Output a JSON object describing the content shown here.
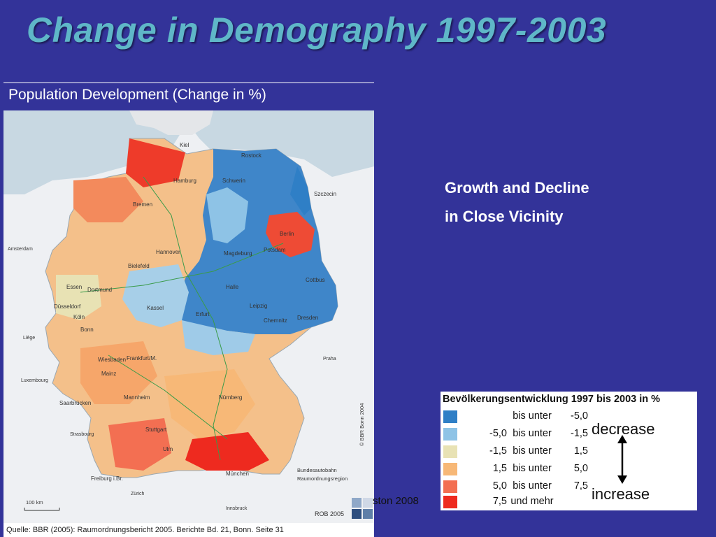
{
  "slide": {
    "title": "Change in Demography 1997-2003",
    "subtitle": "Population Development (Change in %)",
    "right_text": [
      "Growth and Decline",
      "in Close Vicinity"
    ],
    "footer": "ston 2008"
  },
  "map": {
    "source": "Quelle: BBR (2005): Raumordnungsbericht 2005. Berichte Bd. 21, Bonn. Seite 31",
    "copyright": "© BBR Bonn 2004",
    "rob": "ROB 2005",
    "scale": "100 km",
    "key": [
      "Bundesautobahn",
      "Raumordnungsregion"
    ],
    "cities": {
      "kiel": "Kiel",
      "rostock": "Rostock",
      "hamburg": "Hamburg",
      "schwerin": "Schwerin",
      "szczecin": "Szczecin",
      "bremen": "Bremen",
      "amsterdam": "Amsterdam",
      "berlin": "Berlin",
      "potsdam": "Potsdam",
      "hannover": "Hannover",
      "magdeburg": "Magdeburg",
      "bielefeld": "Bielefeld",
      "essen": "Essen",
      "dortmund": "Dortmund",
      "cottbus": "Cottbus",
      "halle": "Halle",
      "duesseldorf": "Düsseldorf",
      "kassel": "Kassel",
      "leipzig": "Leipzig",
      "koeln": "Köln",
      "bonn": "Bonn",
      "erfurt": "Erfurt",
      "chemnitz": "Chemnitz",
      "dresden": "Dresden",
      "liege": "Liège",
      "praha": "Praha",
      "wiesbaden": "Wiesbaden",
      "frankfurt": "Frankfurt/M.",
      "mainz": "Mainz",
      "luxembourg": "Luxembourg",
      "mannheim": "Mannheim",
      "nuernberg": "Nürnberg",
      "saarbruecken": "Saarbrücken",
      "stuttgart": "Stuttgart",
      "strasbourg": "Strasbourg",
      "ulm": "Ulm",
      "freiburg": "Freiburg i.Br.",
      "muenchen": "München",
      "zuerich": "Zürich",
      "innsbruck": "Innsbruck"
    }
  },
  "legend": {
    "title": "Bevölkerungsentwicklung 1997 bis 2003 in %",
    "rows": [
      {
        "from": "",
        "op": "bis unter",
        "to": "-5,0",
        "color": "#2f7fc6"
      },
      {
        "from": "-5,0",
        "op": "bis unter",
        "to": "-1,5",
        "color": "#8ec3e6"
      },
      {
        "from": "-1,5",
        "op": "bis unter",
        "to": "1,5",
        "color": "#e8e2b4"
      },
      {
        "from": "1,5",
        "op": "bis unter",
        "to": "5,0",
        "color": "#f7b877"
      },
      {
        "from": "5,0",
        "op": "bis unter",
        "to": "7,5",
        "color": "#f36f52"
      },
      {
        "from": "7,5",
        "op": "und mehr",
        "to": "",
        "color": "#ee2a1f"
      }
    ],
    "decrease": "decrease",
    "increase": "increase"
  }
}
